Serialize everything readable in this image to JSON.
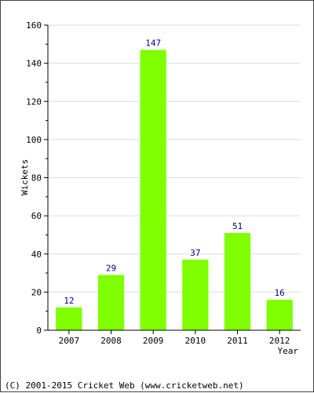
{
  "chart_data": {
    "type": "bar",
    "categories": [
      "2007",
      "2008",
      "2009",
      "2010",
      "2011",
      "2012"
    ],
    "values": [
      12,
      29,
      147,
      37,
      51,
      16
    ],
    "data_labels": [
      "12",
      "29",
      "147",
      "37",
      "51",
      "16"
    ],
    "title": "",
    "xlabel": "Year",
    "ylabel": "Wickets",
    "ylim": [
      0,
      160
    ],
    "yticks": [
      0,
      20,
      40,
      60,
      80,
      100,
      120,
      140,
      160
    ],
    "grid": true,
    "legend": "none"
  },
  "colors": {
    "bar": "#80ff00",
    "data_label": "#00008b",
    "grid": "#dddddd",
    "axis": "#000000",
    "text": "#000000"
  },
  "footer": {
    "copyright": "(C) 2001-2015 Cricket Web (www.cricketweb.net)"
  }
}
